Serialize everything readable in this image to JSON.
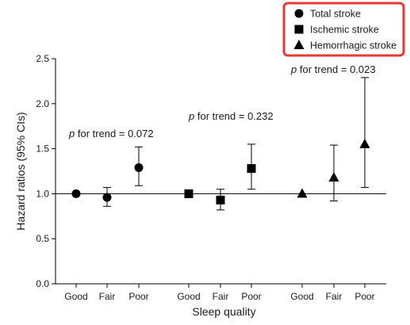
{
  "chart_data": {
    "type": "scatter",
    "ylabel": "Hazard ratios (95% CIs)",
    "xlabel": "Sleep quality",
    "ylim": [
      0.0,
      2.5
    ],
    "yticks": [
      "0.0",
      "0.5",
      "1.0",
      "1.5",
      "2.0",
      "2.5"
    ],
    "reference_line": 1.0,
    "grid": false,
    "legend_position": "top-right",
    "legend_border_color": "#e53935",
    "marker_color": "#000000",
    "groups": [
      {
        "name": "Total stroke",
        "marker": "circle",
        "trend_label": "p for trend = 0.072",
        "points": [
          {
            "category": "Good",
            "hr": 1.0,
            "lower": null,
            "upper": null
          },
          {
            "category": "Fair",
            "hr": 0.96,
            "lower": 0.86,
            "upper": 1.07
          },
          {
            "category": "Poor",
            "hr": 1.29,
            "lower": 1.09,
            "upper": 1.52
          }
        ]
      },
      {
        "name": "Ischemic stroke",
        "marker": "square",
        "trend_label": "p for trend = 0.232",
        "points": [
          {
            "category": "Good",
            "hr": 1.0,
            "lower": null,
            "upper": null
          },
          {
            "category": "Fair",
            "hr": 0.93,
            "lower": 0.82,
            "upper": 1.05
          },
          {
            "category": "Poor",
            "hr": 1.28,
            "lower": 1.05,
            "upper": 1.55
          }
        ]
      },
      {
        "name": "Hemorrhagic stroke",
        "marker": "triangle",
        "trend_label": "p for trend = 0.023",
        "points": [
          {
            "category": "Good",
            "hr": 1.0,
            "lower": null,
            "upper": null
          },
          {
            "category": "Fair",
            "hr": 1.18,
            "lower": 0.92,
            "upper": 1.54
          },
          {
            "category": "Poor",
            "hr": 1.55,
            "lower": 1.07,
            "upper": 2.29
          }
        ]
      }
    ]
  }
}
